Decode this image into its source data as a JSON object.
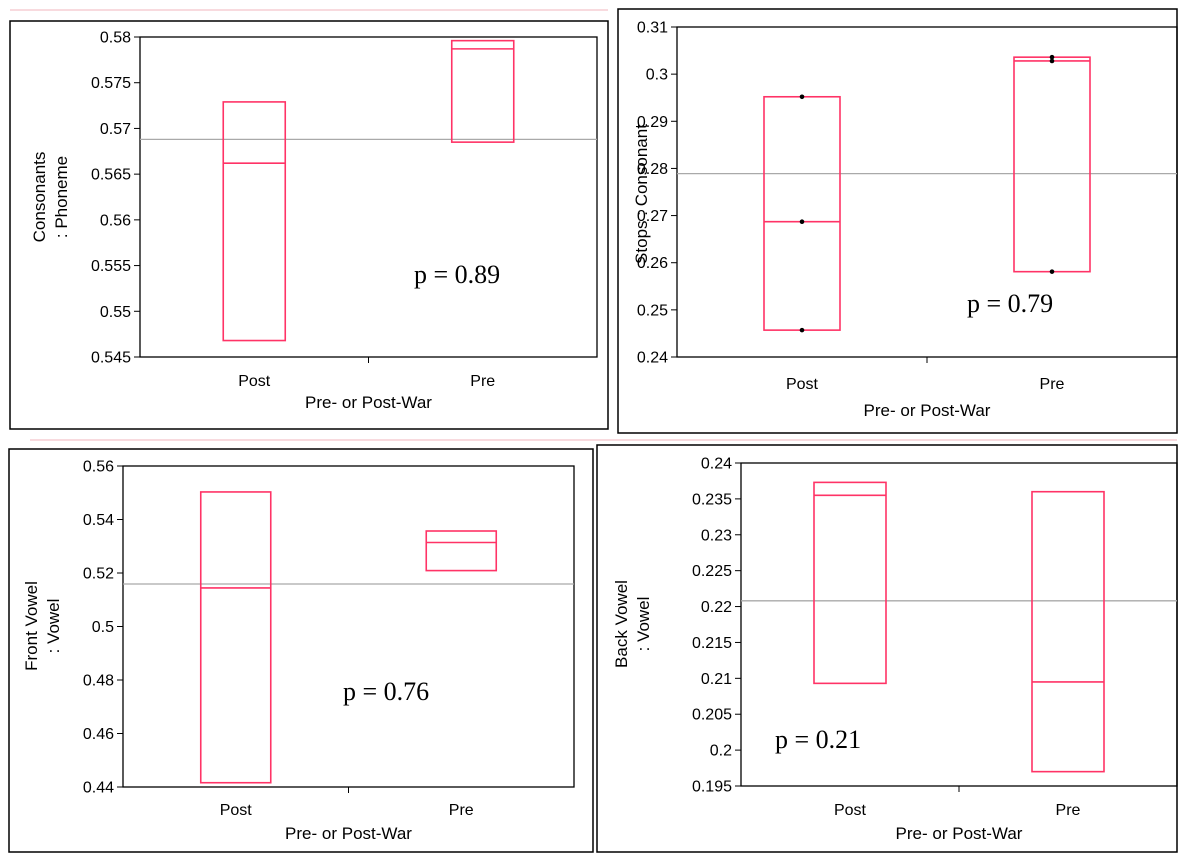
{
  "colors": {
    "box": "#ff3366",
    "mean_line": "#a9a9a9",
    "frame": "#000000",
    "point": "#000000"
  },
  "chart_data": [
    {
      "type": "box",
      "categories": [
        "Post",
        "Pre"
      ],
      "xlabel": "Pre- or Post-War",
      "ylabel_lines": [
        "Consonants",
        ": Phoneme"
      ],
      "ylim": [
        0.545,
        0.58
      ],
      "yticks": [
        0.545,
        0.55,
        0.555,
        0.56,
        0.565,
        0.57,
        0.575,
        0.58
      ],
      "ytick_labels": [
        "0.545",
        "0.55",
        "0.555",
        "0.56",
        "0.565",
        "0.57",
        "0.575",
        "0.58"
      ],
      "boxes": [
        {
          "q1": 0.5468,
          "median": 0.5662,
          "q3": 0.5729
        },
        {
          "q1": 0.5685,
          "median": 0.5787,
          "q3": 0.5796
        }
      ],
      "mean": 0.5688,
      "annotation": "p = 0.89",
      "points": []
    },
    {
      "type": "box",
      "categories": [
        "Post",
        "Pre"
      ],
      "xlabel": "Pre- or Post-War",
      "ylabel_lines": [
        "Stops : Consonant"
      ],
      "ylim": [
        0.24,
        0.31
      ],
      "yticks": [
        0.24,
        0.25,
        0.26,
        0.27,
        0.28,
        0.29,
        0.3,
        0.31
      ],
      "ytick_labels": [
        "0.24",
        "0.25",
        "0.26",
        "0.27",
        "0.28",
        "0.29",
        "0.3",
        "0.31"
      ],
      "boxes": [
        {
          "q1": 0.2457,
          "median": 0.2687,
          "q3": 0.2952
        },
        {
          "q1": 0.2581,
          "median": 0.3028,
          "q3": 0.3036
        }
      ],
      "mean": 0.2789,
      "annotation": "p = 0.79",
      "points": [
        [
          0.2952,
          0.2687,
          0.2457
        ],
        [
          0.3036,
          0.3028,
          0.2581
        ]
      ]
    },
    {
      "type": "box",
      "categories": [
        "Post",
        "Pre"
      ],
      "xlabel": "Pre- or Post-War",
      "ylabel_lines": [
        "Front Vowel",
        ": Vowel"
      ],
      "ylim": [
        0.44,
        0.56
      ],
      "yticks": [
        0.44,
        0.46,
        0.48,
        0.5,
        0.52,
        0.54,
        0.56
      ],
      "ytick_labels": [
        "0.44",
        "0.46",
        "0.48",
        "0.5",
        "0.52",
        "0.54",
        "0.56"
      ],
      "boxes": [
        {
          "q1": 0.4416,
          "median": 0.5144,
          "q3": 0.5503
        },
        {
          "q1": 0.5209,
          "median": 0.5314,
          "q3": 0.5357
        }
      ],
      "mean": 0.5159,
      "annotation": "p = 0.76",
      "points": []
    },
    {
      "type": "box",
      "categories": [
        "Post",
        "Pre"
      ],
      "xlabel": "Pre- or Post-War",
      "ylabel_lines": [
        "Back Vowel",
        ": Vowel"
      ],
      "ylim": [
        0.195,
        0.24
      ],
      "yticks": [
        0.195,
        0.2,
        0.205,
        0.21,
        0.215,
        0.22,
        0.225,
        0.23,
        0.235,
        0.24
      ],
      "ytick_labels": [
        "0.195",
        "0.2",
        "0.205",
        "0.21",
        "0.215",
        "0.22",
        "0.225",
        "0.23",
        "0.235",
        "0.24"
      ],
      "boxes": [
        {
          "q1": 0.2093,
          "median": 0.2355,
          "q3": 0.2373
        },
        {
          "q1": 0.197,
          "median": 0.2095,
          "q3": 0.236
        }
      ],
      "mean": 0.2208,
      "annotation": "p = 0.21",
      "points": []
    }
  ]
}
